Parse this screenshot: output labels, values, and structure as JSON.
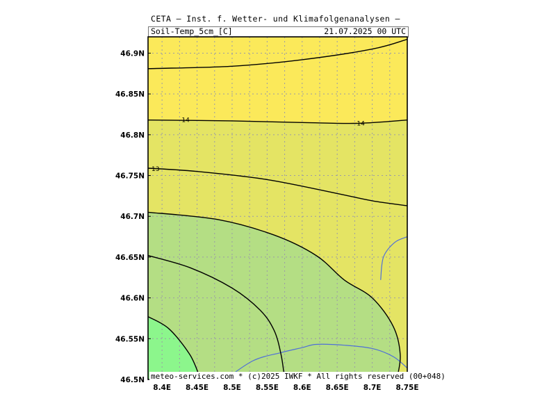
{
  "header": {
    "title": "CETA — Inst. f. Wetter- und Klimafolgenanalysen —",
    "variable": "Soil-Temp_5cm_[C]",
    "valid_time": "21.07.2025 00 UTC"
  },
  "footer": {
    "copyright": "meteo-services.com * (c)2025 IWKF * All rights reserved (00+048)"
  },
  "map": {
    "lon_range": [
      8.38,
      8.75
    ],
    "lat_range": [
      46.5,
      46.92
    ],
    "x_ticks": [
      {
        "value": 8.4,
        "label": "8.4E"
      },
      {
        "value": 8.45,
        "label": "8.45E"
      },
      {
        "value": 8.5,
        "label": "8.5E"
      },
      {
        "value": 8.55,
        "label": "8.55E"
      },
      {
        "value": 8.6,
        "label": "8.6E"
      },
      {
        "value": 8.65,
        "label": "8.65E"
      },
      {
        "value": 8.7,
        "label": "8.7E"
      },
      {
        "value": 8.75,
        "label": "8.75E"
      }
    ],
    "y_ticks": [
      {
        "value": 46.5,
        "label": "46.5N"
      },
      {
        "value": 46.55,
        "label": "46.55N"
      },
      {
        "value": 46.6,
        "label": "46.6N"
      },
      {
        "value": 46.65,
        "label": "46.65N"
      },
      {
        "value": 46.7,
        "label": "46.7N"
      },
      {
        "value": 46.75,
        "label": "46.75N"
      },
      {
        "value": 46.8,
        "label": "46.8N"
      },
      {
        "value": 46.85,
        "label": "46.85N"
      },
      {
        "value": 46.9,
        "label": "46.9N"
      }
    ],
    "colors": {
      "band_top": "#fbe95a",
      "band_upper": "#e8e060",
      "band_mid": "#e4e464",
      "band_green_light": "#b4de84",
      "band_green_bright": "#8cf68c",
      "contour": "#000000",
      "river": "#4f6fd8"
    },
    "contour_labels": [
      {
        "text": "14",
        "lon": 8.428,
        "lat": 46.818
      },
      {
        "text": "14",
        "lon": 8.678,
        "lat": 46.814
      },
      {
        "text": "13",
        "lon": 8.385,
        "lat": 46.758
      }
    ],
    "contours": [
      {
        "name": "contour-top",
        "points": [
          [
            8.38,
            46.881
          ],
          [
            8.5,
            46.884
          ],
          [
            8.6,
            46.892
          ],
          [
            8.7,
            46.905
          ],
          [
            8.75,
            46.917
          ]
        ]
      },
      {
        "name": "contour-14",
        "points": [
          [
            8.38,
            46.818
          ],
          [
            8.5,
            46.817
          ],
          [
            8.6,
            46.815
          ],
          [
            8.68,
            46.814
          ],
          [
            8.75,
            46.818
          ]
        ]
      },
      {
        "name": "contour-13",
        "points": [
          [
            8.38,
            46.759
          ],
          [
            8.45,
            46.755
          ],
          [
            8.55,
            46.745
          ],
          [
            8.65,
            46.728
          ],
          [
            8.7,
            46.719
          ],
          [
            8.75,
            46.713
          ]
        ]
      },
      {
        "name": "contour-12",
        "points": [
          [
            8.38,
            46.705
          ],
          [
            8.48,
            46.696
          ],
          [
            8.56,
            46.677
          ],
          [
            8.62,
            46.652
          ],
          [
            8.66,
            46.622
          ],
          [
            8.7,
            46.6
          ],
          [
            8.73,
            46.565
          ],
          [
            8.74,
            46.53
          ],
          [
            8.735,
            46.5
          ]
        ]
      },
      {
        "name": "contour-11",
        "points": [
          [
            8.38,
            46.652
          ],
          [
            8.44,
            46.637
          ],
          [
            8.5,
            46.612
          ],
          [
            8.54,
            46.585
          ],
          [
            8.56,
            46.56
          ],
          [
            8.57,
            46.53
          ],
          [
            8.575,
            46.5
          ]
        ]
      },
      {
        "name": "contour-10",
        "points": [
          [
            8.38,
            46.577
          ],
          [
            8.41,
            46.562
          ],
          [
            8.44,
            46.53
          ],
          [
            8.455,
            46.5
          ]
        ]
      }
    ],
    "rivers": [
      {
        "name": "river-south",
        "points": [
          [
            8.49,
            46.5
          ],
          [
            8.53,
            46.523
          ],
          [
            8.57,
            46.533
          ],
          [
            8.6,
            46.539
          ],
          [
            8.62,
            46.543
          ],
          [
            8.66,
            46.542
          ],
          [
            8.7,
            46.538
          ],
          [
            8.73,
            46.528
          ],
          [
            8.75,
            46.514
          ]
        ]
      },
      {
        "name": "river-east",
        "points": [
          [
            8.712,
            46.622
          ],
          [
            8.716,
            46.65
          ],
          [
            8.732,
            46.668
          ],
          [
            8.75,
            46.675
          ]
        ]
      }
    ]
  }
}
